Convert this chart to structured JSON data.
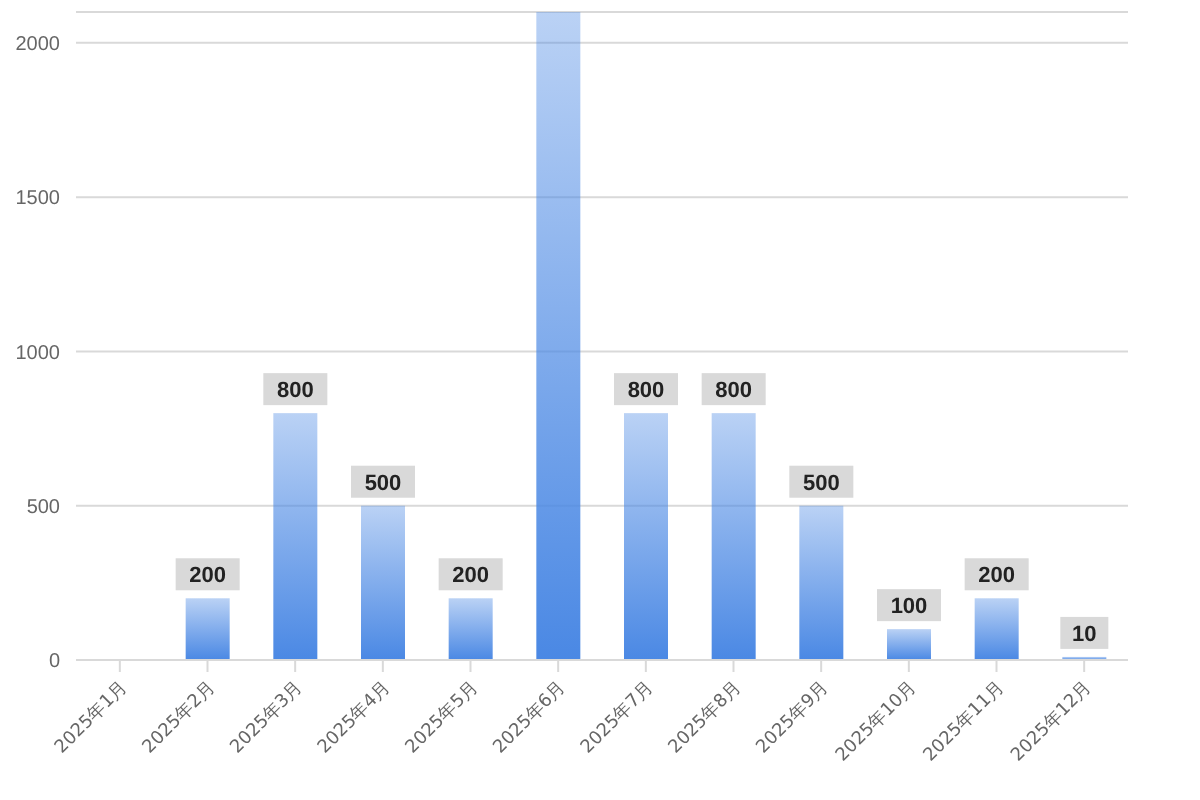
{
  "chart_data": {
    "type": "bar",
    "categories": [
      "2025年1月",
      "2025年2月",
      "2025年3月",
      "2025年4月",
      "2025年5月",
      "2025年6月",
      "2025年7月",
      "2025年8月",
      "2025年9月",
      "2025年10月",
      "2025年11月",
      "2025年12月"
    ],
    "values": [
      0,
      200,
      800,
      500,
      200,
      2100,
      800,
      800,
      500,
      100,
      200,
      10
    ],
    "value_labels": [
      null,
      "200",
      "800",
      "500",
      "200",
      null,
      "800",
      "800",
      "500",
      "100",
      "200",
      "10"
    ],
    "color": "#4a88e4",
    "ylim": [
      0,
      2100
    ],
    "yticks": [
      0,
      500,
      1000,
      1500,
      2000
    ],
    "grid": "y",
    "legend": false
  }
}
